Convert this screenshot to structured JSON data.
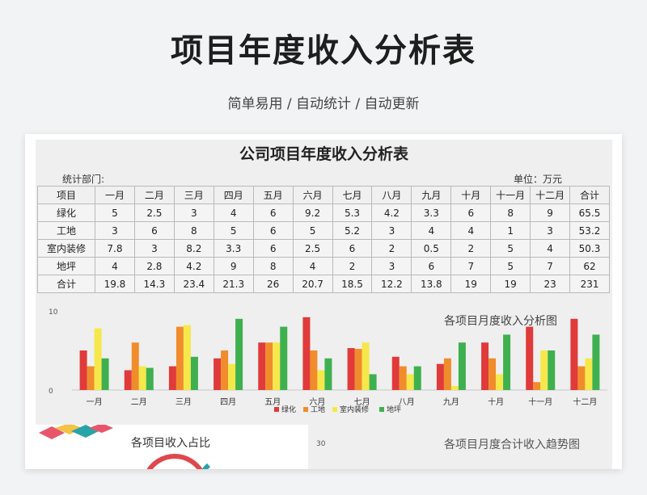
{
  "header": {
    "title": "项目年度收入分析表",
    "subtitle": "简单易用 / 自动统计 / 自动更新"
  },
  "sheet": {
    "title": "公司项目年度收入分析表",
    "dept_label": "统计部门:",
    "unit_label": "单位：万元",
    "table": {
      "columns": [
        "项目",
        "一月",
        "二月",
        "三月",
        "四月",
        "五月",
        "六月",
        "七月",
        "八月",
        "九月",
        "十月",
        "十一月",
        "十二月",
        "合计"
      ],
      "rows": [
        [
          "绿化",
          "5",
          "2.5",
          "3",
          "4",
          "6",
          "9.2",
          "5.3",
          "4.2",
          "3.3",
          "6",
          "8",
          "9",
          "65.5"
        ],
        [
          "工地",
          "3",
          "6",
          "8",
          "5",
          "6",
          "5",
          "5.2",
          "3",
          "4",
          "4",
          "1",
          "3",
          "53.2"
        ],
        [
          "室内装修",
          "7.8",
          "3",
          "8.2",
          "3.3",
          "6",
          "2.5",
          "6",
          "2",
          "0.5",
          "2",
          "5",
          "4",
          "50.3"
        ],
        [
          "地坪",
          "4",
          "2.8",
          "4.2",
          "9",
          "8",
          "4",
          "2",
          "3",
          "6",
          "7",
          "5",
          "7",
          "62"
        ],
        [
          "合计",
          "19.8",
          "14.3",
          "23.4",
          "21.3",
          "26",
          "20.7",
          "18.5",
          "12.2",
          "13.8",
          "19",
          "19",
          "23",
          "231"
        ]
      ]
    },
    "pie_title": "各项目收入占比",
    "trend_title": "各项目月度合计收入趋势图",
    "trend_tick": "30"
  },
  "chart_data": {
    "type": "bar",
    "title": "各项目月度收入分析图",
    "categories": [
      "一月",
      "二月",
      "三月",
      "四月",
      "五月",
      "六月",
      "七月",
      "八月",
      "九月",
      "十月",
      "十一月",
      "十二月"
    ],
    "ylim": [
      0,
      10
    ],
    "yticks": [
      "0",
      "10"
    ],
    "legend_position": "bottom",
    "series": [
      {
        "name": "绿化",
        "color": "#e03a3a",
        "values": [
          5,
          2.5,
          3,
          4,
          6,
          9.2,
          5.3,
          4.2,
          3.3,
          6,
          8,
          9
        ]
      },
      {
        "name": "工地",
        "color": "#f08c2c",
        "values": [
          3,
          6,
          8,
          5,
          6,
          5,
          5.2,
          3,
          4,
          4,
          1,
          3
        ]
      },
      {
        "name": "室内装修",
        "color": "#f6e84a",
        "values": [
          7.8,
          3,
          8.2,
          3.3,
          6,
          2.5,
          6,
          2,
          0.5,
          2,
          5,
          4
        ]
      },
      {
        "name": "地坪",
        "color": "#3fb04f",
        "values": [
          4,
          2.8,
          4.2,
          9,
          8,
          4,
          2,
          3,
          6,
          7,
          5,
          7
        ]
      }
    ]
  }
}
